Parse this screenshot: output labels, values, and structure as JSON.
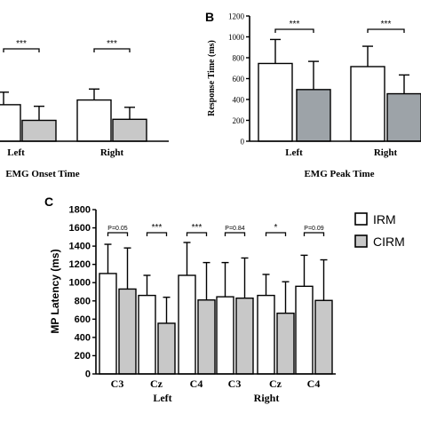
{
  "panels": {
    "a": {
      "letter": "",
      "title": "EMG Onset Time",
      "groups": [
        "Left",
        "Right"
      ],
      "significance": [
        "***",
        "***"
      ]
    },
    "b": {
      "letter": "B",
      "title": "EMG Peak Time",
      "ylabel": "Response Time (ms)",
      "groups": [
        "Left",
        "Right"
      ],
      "significance": [
        "***",
        "***"
      ]
    },
    "c": {
      "letter": "C",
      "ylabel": "MP Latency (ms)",
      "significance": [
        "P=0.05",
        "***",
        "***",
        "P=0.84",
        "*",
        "P=0.09"
      ],
      "sides": [
        "Left",
        "Right"
      ]
    }
  },
  "legend": {
    "items": [
      "IRM",
      "CIRM"
    ]
  },
  "colors": {
    "irm": "#ffffff",
    "cirm": "#c8c8c8",
    "cirm_b": "#9da3a8",
    "axis": "#000000"
  },
  "chart_data": [
    {
      "type": "bar",
      "panel": "A",
      "title": "EMG Onset Time",
      "categories": [
        "Left",
        "Right"
      ],
      "ylim": [
        0,
        1200
      ],
      "series": [
        {
          "name": "IRM",
          "values": [
            350,
            395
          ],
          "errors": [
            120,
            105
          ]
        },
        {
          "name": "CIRM",
          "values": [
            200,
            210
          ],
          "errors": [
            135,
            115
          ]
        }
      ],
      "annotations": [
        "***",
        "***"
      ]
    },
    {
      "type": "bar",
      "panel": "B",
      "title": "EMG Peak Time",
      "ylabel": "Response Time (ms)",
      "categories": [
        "Left",
        "Right"
      ],
      "ylim": [
        0,
        1200
      ],
      "yticks": [
        0,
        200,
        400,
        600,
        800,
        1000,
        1200
      ],
      "series": [
        {
          "name": "IRM",
          "values": [
            745,
            715
          ],
          "errors": [
            230,
            195
          ]
        },
        {
          "name": "CIRM",
          "values": [
            495,
            455
          ],
          "errors": [
            270,
            180
          ]
        }
      ],
      "annotations": [
        "***",
        "***"
      ]
    },
    {
      "type": "bar",
      "panel": "C",
      "ylabel": "MP Latency (ms)",
      "categories": [
        "C3",
        "Cz",
        "C4",
        "C3",
        "Cz",
        "C4"
      ],
      "groups": [
        "Left",
        "Left",
        "Left",
        "Right",
        "Right",
        "Right"
      ],
      "ylim": [
        0,
        1800
      ],
      "yticks": [
        0,
        200,
        400,
        600,
        800,
        1000,
        1200,
        1400,
        1600,
        1800
      ],
      "series": [
        {
          "name": "IRM",
          "values": [
            1100,
            860,
            1080,
            845,
            860,
            960
          ],
          "errors": [
            320,
            220,
            360,
            375,
            230,
            340
          ]
        },
        {
          "name": "CIRM",
          "values": [
            930,
            555,
            810,
            830,
            665,
            805
          ],
          "errors": [
            450,
            285,
            410,
            440,
            345,
            445
          ]
        }
      ],
      "annotations": [
        "P=0.05",
        "***",
        "***",
        "P=0.84",
        "*",
        "P=0.09"
      ],
      "legend": "right"
    }
  ]
}
